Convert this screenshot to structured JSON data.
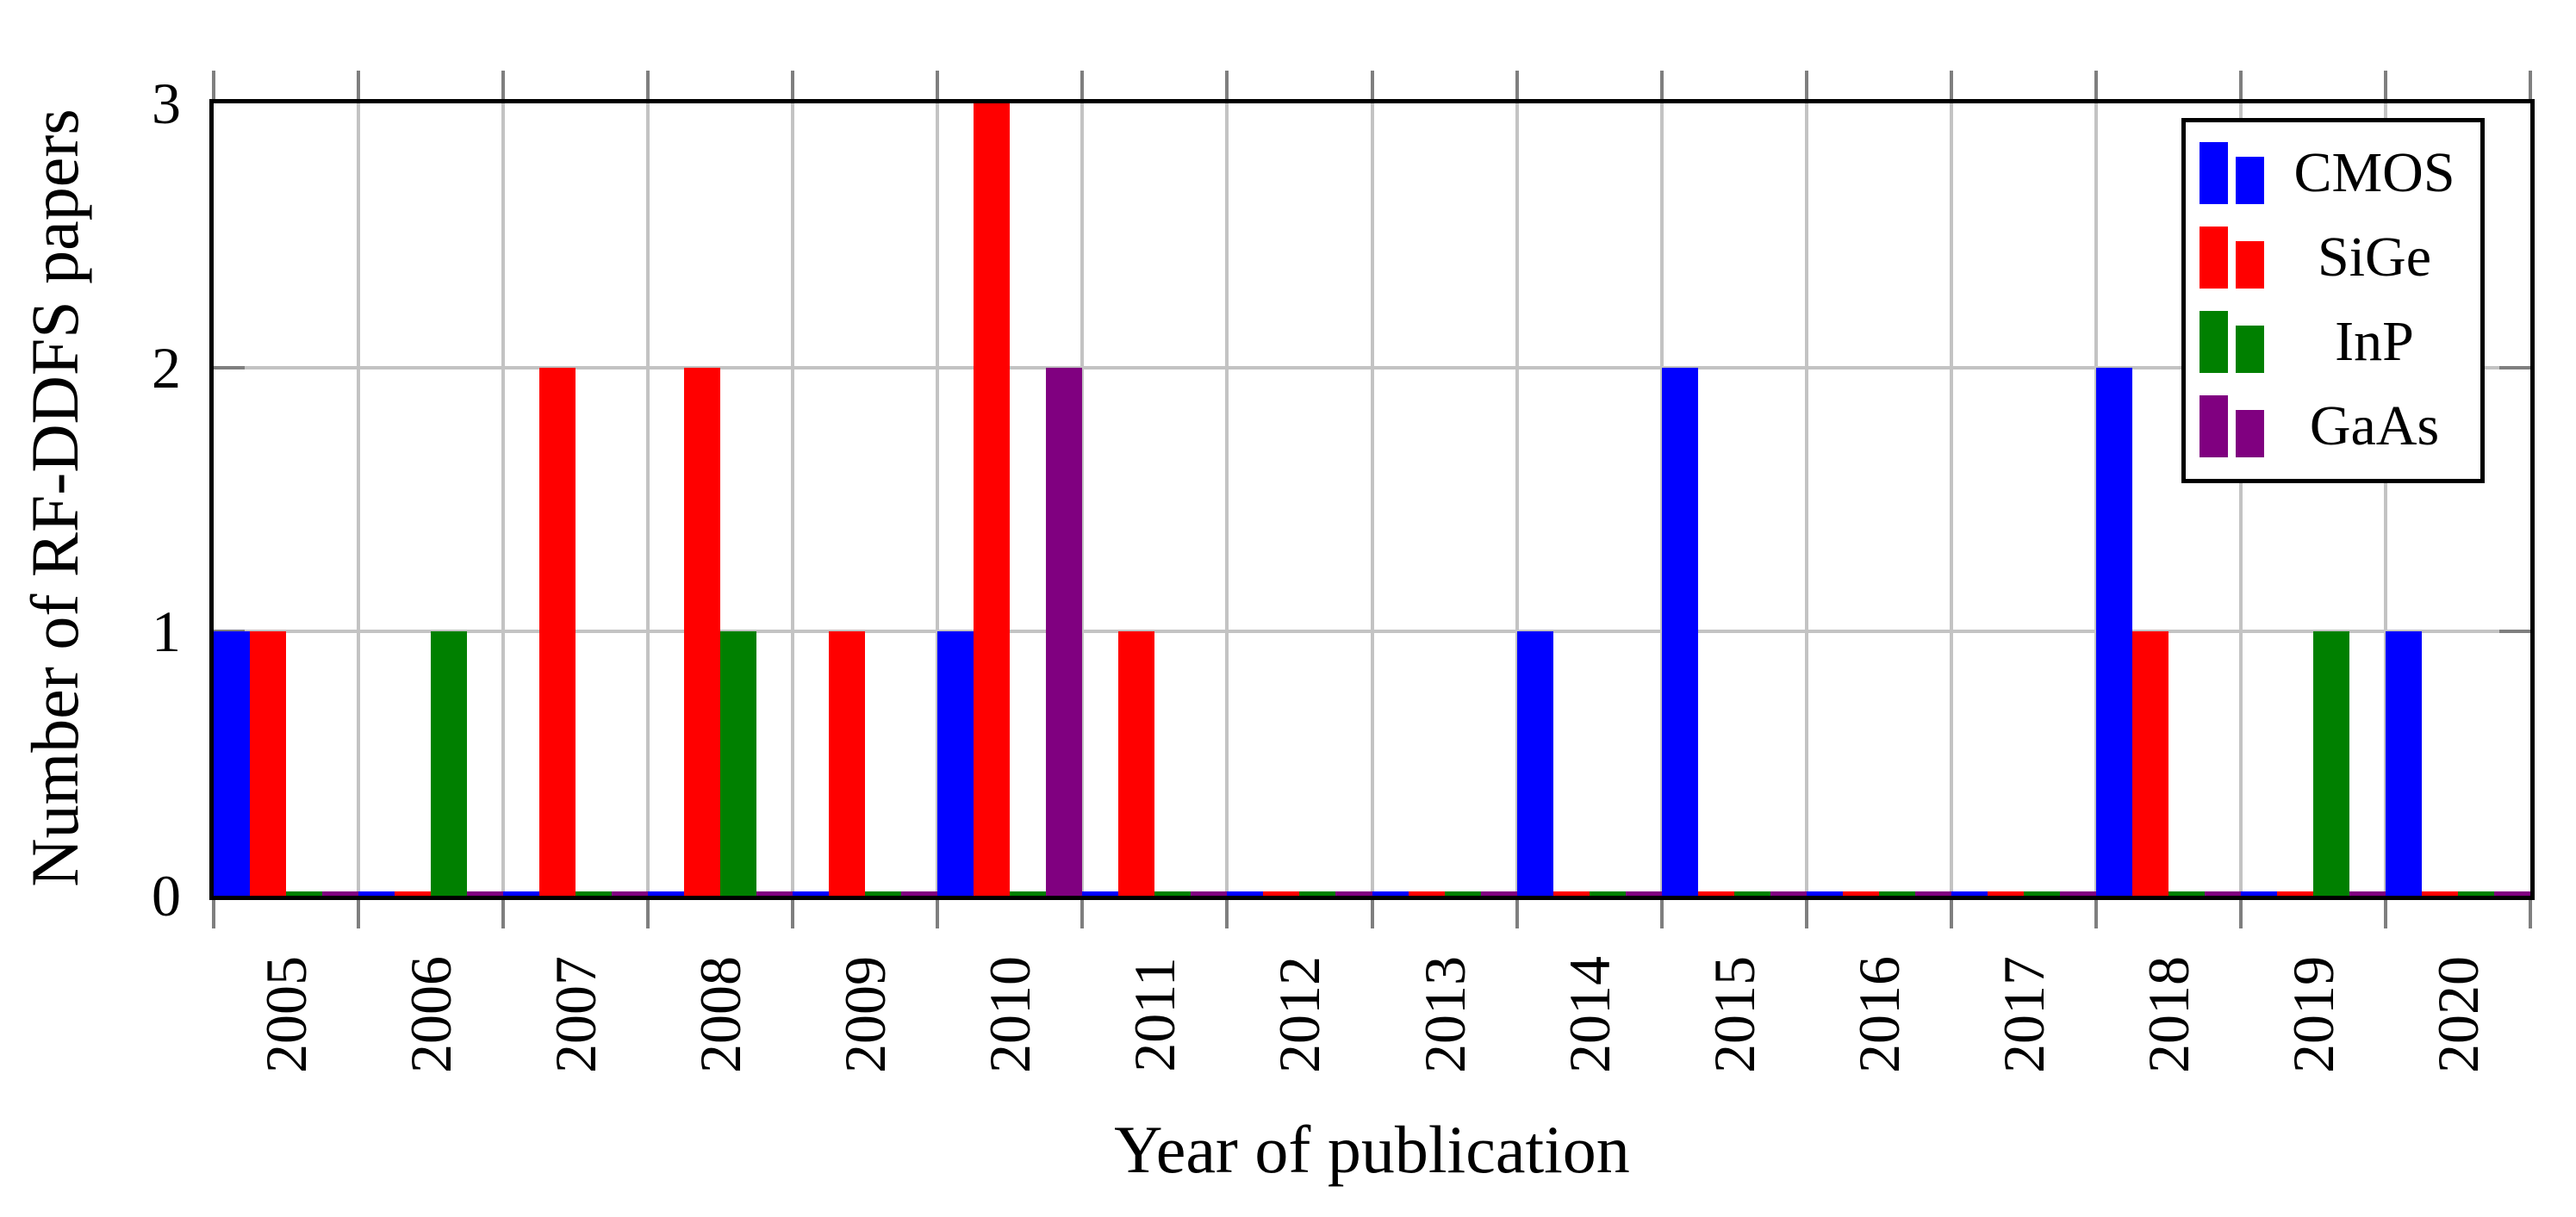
{
  "chart_data": {
    "type": "bar",
    "title": "",
    "xlabel": "Year of publication",
    "ylabel": "Number of RF-DDFS papers",
    "categories": [
      "2005",
      "2006",
      "2007",
      "2008",
      "2009",
      "2010",
      "2011",
      "2012",
      "2013",
      "2014",
      "2015",
      "2016",
      "2017",
      "2018",
      "2019",
      "2020"
    ],
    "series": [
      {
        "name": "CMOS",
        "color": "#0000ff",
        "values": [
          1,
          0,
          0,
          0,
          0,
          1,
          0,
          0,
          0,
          1,
          2,
          0,
          0,
          2,
          0,
          1
        ]
      },
      {
        "name": "SiGe",
        "color": "#ff0000",
        "values": [
          1,
          0,
          2,
          2,
          1,
          3,
          1,
          0,
          0,
          0,
          0,
          0,
          0,
          1,
          0,
          0
        ]
      },
      {
        "name": "InP",
        "color": "#008000",
        "values": [
          0,
          1,
          0,
          1,
          0,
          0,
          0,
          0,
          0,
          0,
          0,
          0,
          0,
          0,
          1,
          0
        ]
      },
      {
        "name": "GaAs",
        "color": "#800080",
        "values": [
          0,
          0,
          0,
          0,
          0,
          2,
          0,
          0,
          0,
          0,
          0,
          0,
          0,
          0,
          0,
          0
        ]
      }
    ],
    "yticks": [
      0,
      1,
      2,
      3
    ],
    "ylim": [
      0,
      3
    ],
    "grid": true,
    "legend_position": "top-right",
    "style": {
      "grid_color": "#c3c3c3",
      "tick_color": "#7f7f7f",
      "axis_color": "#000000",
      "background": "#ffffff"
    }
  }
}
